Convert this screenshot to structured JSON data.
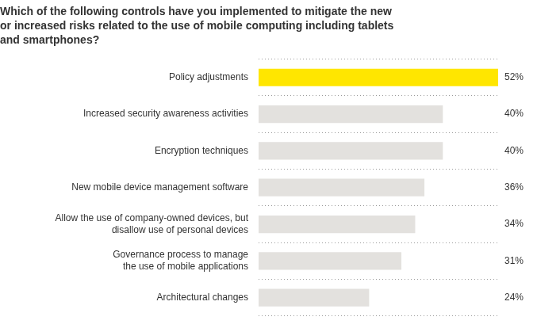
{
  "chart_data": {
    "type": "bar",
    "orientation": "horizontal",
    "title": [
      "Which of the following controls have you implemented to mitigate the new",
      "or increased risks related to the use of mobile computing including tablets",
      "and smartphones?"
    ],
    "categories": [
      "Policy adjustments",
      "Increased security awareness activities",
      "Encryption techniques",
      "New mobile device management software",
      [
        "Allow the use of company-owned devices, but",
        "disallow use of personal devices"
      ],
      [
        "Governance process to manage",
        "the use of mobile applications"
      ],
      "Architectural changes"
    ],
    "values": [
      52,
      40,
      40,
      36,
      34,
      31,
      24
    ],
    "value_labels": [
      "52%",
      "40%",
      "40%",
      "36%",
      "34%",
      "31%",
      "24%"
    ],
    "colors": [
      "#ffe600",
      "#e3e1de",
      "#e3e1de",
      "#e3e1de",
      "#e3e1de",
      "#e3e1de",
      "#e3e1de"
    ],
    "xlim": [
      0,
      52
    ],
    "grid": true,
    "data_labels": true,
    "tick_labels": "y"
  }
}
